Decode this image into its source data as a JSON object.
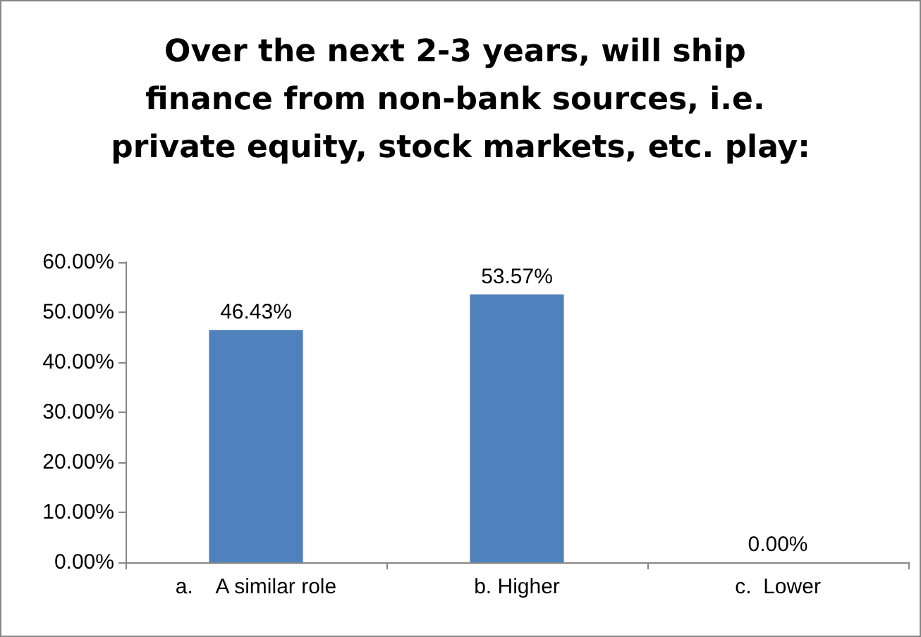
{
  "chart_data": {
    "type": "bar",
    "title": "Over the next 2-3 years, will ship finance from non-bank sources, i.e. private equity, stock markets, etc. play:",
    "categories": [
      "a.    A similar role",
      "b. Higher",
      "c.  Lower"
    ],
    "values": [
      46.43,
      53.57,
      0.0
    ],
    "value_labels": [
      "46.43%",
      "53.57%",
      "0.00%"
    ],
    "color": "#4f81bd",
    "ylim": [
      0,
      60
    ],
    "yticks": [
      {
        "value": 0,
        "label": "0.00%"
      },
      {
        "value": 10,
        "label": "10.00%"
      },
      {
        "value": 20,
        "label": "20.00%"
      },
      {
        "value": 30,
        "label": "30.00%"
      },
      {
        "value": 40,
        "label": "40.00%"
      },
      {
        "value": 50,
        "label": "50.00%"
      },
      {
        "value": 60,
        "label": "60.00%"
      }
    ],
    "grid": false
  }
}
